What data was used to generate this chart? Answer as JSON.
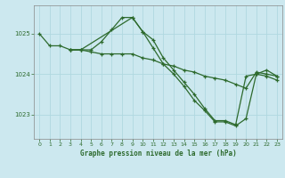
{
  "title": "Graphe pression niveau de la mer (hPa)",
  "background_color": "#cce8ef",
  "grid_color": "#b0d8e0",
  "line_color": "#2d6a2d",
  "marker_color": "#2d6a2d",
  "ylabel_ticks": [
    1023,
    1024,
    1025
  ],
  "xlim": [
    -0.5,
    23.5
  ],
  "ylim": [
    1022.4,
    1025.7
  ],
  "series": [
    {
      "x": [
        0,
        1,
        2,
        3,
        4,
        5,
        6,
        7,
        8,
        9,
        10,
        11,
        12,
        13,
        14,
        15,
        16,
        17,
        18,
        19,
        20,
        21,
        22,
        23
      ],
      "y": [
        1025.0,
        1024.7,
        1024.7,
        1024.6,
        1024.6,
        1024.6,
        1024.8,
        1025.1,
        1025.4,
        1025.4,
        1025.05,
        1024.85,
        1024.4,
        1024.1,
        1023.8,
        1023.5,
        1023.15,
        1022.85,
        1022.85,
        1022.75,
        1023.95,
        1024.0,
        1024.1,
        1023.95
      ]
    },
    {
      "x": [
        3,
        4,
        5,
        6,
        7,
        8,
        9,
        10,
        11,
        12,
        13,
        14,
        15,
        16,
        17,
        18,
        19,
        20,
        21,
        22,
        23
      ],
      "y": [
        1024.6,
        1024.6,
        1024.55,
        1024.5,
        1024.5,
        1024.5,
        1024.5,
        1024.4,
        1024.35,
        1024.25,
        1024.2,
        1024.1,
        1024.05,
        1023.95,
        1023.9,
        1023.85,
        1023.75,
        1023.65,
        1024.05,
        1024.0,
        1023.95
      ]
    },
    {
      "x": [
        3,
        4,
        9,
        10,
        11,
        12,
        13,
        14,
        15,
        16,
        17,
        18,
        19,
        20,
        21,
        22,
        23
      ],
      "y": [
        1024.6,
        1024.6,
        1025.4,
        1025.05,
        1024.65,
        1024.25,
        1024.0,
        1023.7,
        1023.35,
        1023.1,
        1022.82,
        1022.82,
        1022.72,
        1022.9,
        1024.0,
        1023.95,
        1023.85
      ]
    }
  ]
}
